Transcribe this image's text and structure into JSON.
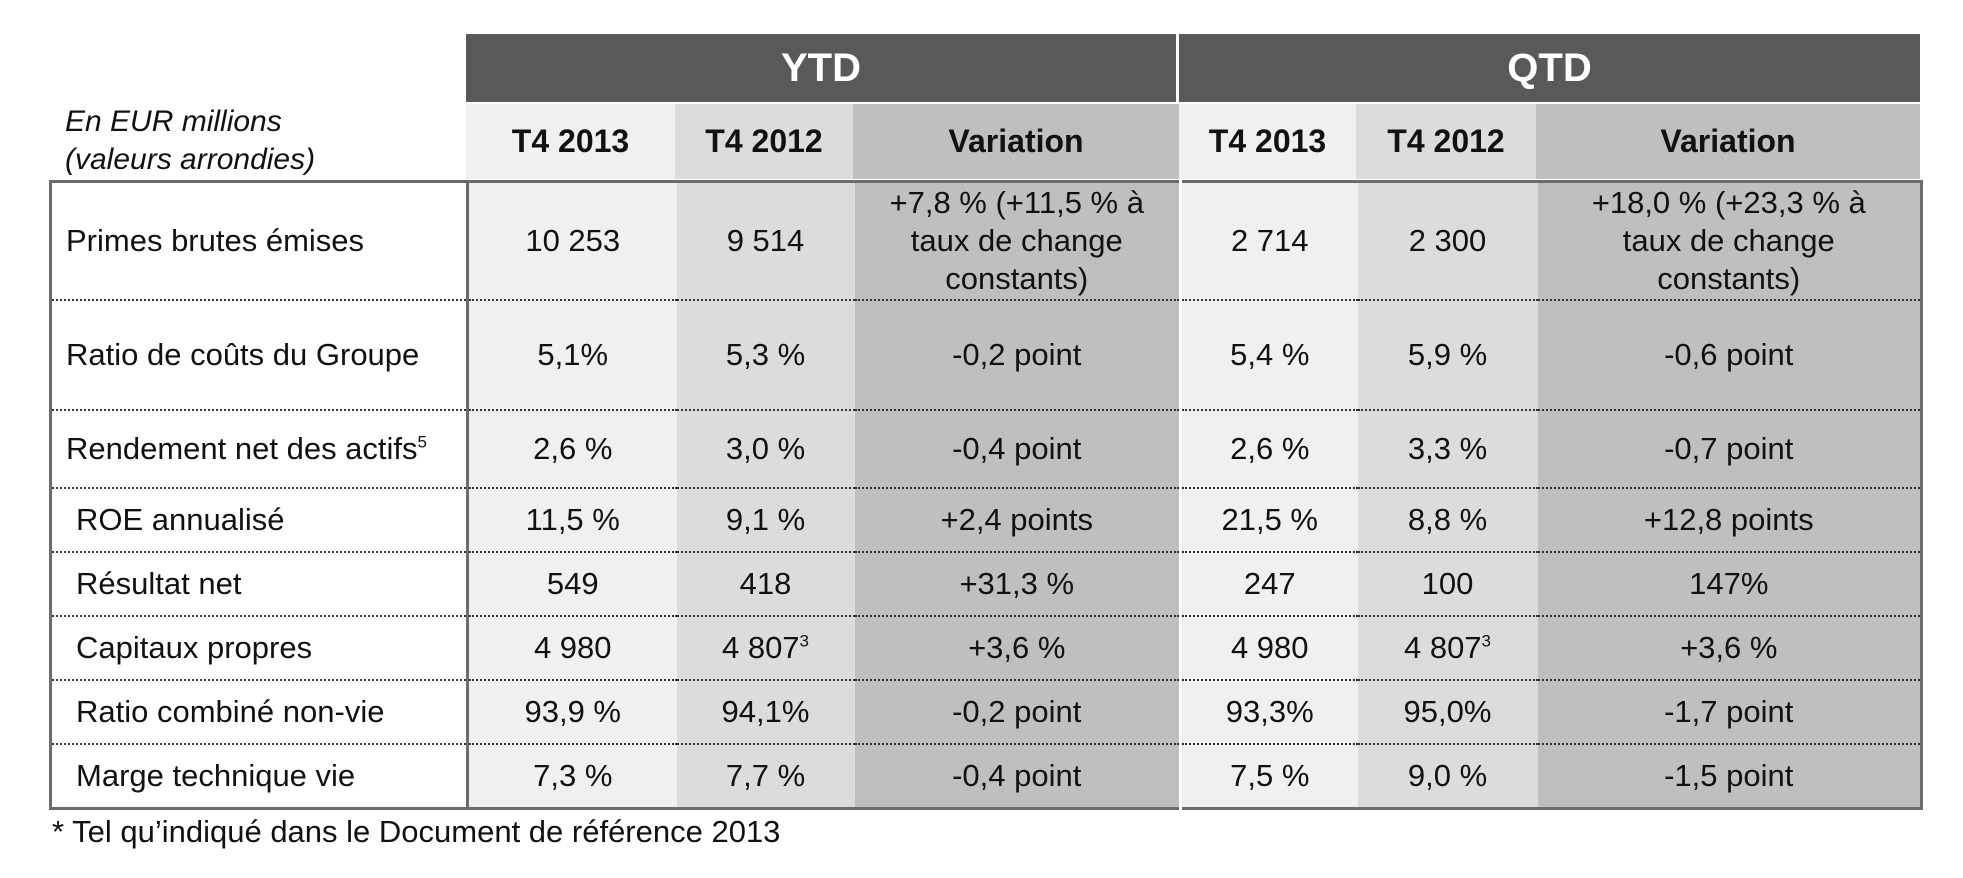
{
  "units": {
    "line1": "En EUR millions",
    "line2": "(valeurs arrondies)"
  },
  "groups": {
    "ytd": "YTD",
    "qtd": "QTD"
  },
  "subheaders": {
    "ytd": [
      "T4 2013",
      "T4 2012",
      "Variation"
    ],
    "qtd": [
      "T4 2013",
      "T4 2012",
      "Variation"
    ]
  },
  "rows": [
    {
      "label": "Primes brutes émises",
      "label_sup": "",
      "ytd": [
        "10 253",
        "9 514",
        "+7,8 % (+11,5 % à taux de change constants)"
      ],
      "ytd_sup": [
        "",
        "",
        ""
      ],
      "qtd": [
        "2 714",
        "2 300",
        "+18,0 % (+23,3 % à taux de change constants)"
      ],
      "qtd_sup": [
        "",
        "",
        ""
      ]
    },
    {
      "label": "Ratio de coûts du Groupe",
      "label_sup": "",
      "ytd": [
        "5,1%",
        "5,3 %",
        "-0,2 point"
      ],
      "ytd_sup": [
        "",
        "",
        ""
      ],
      "qtd": [
        "5,4 %",
        "5,9 %",
        "-0,6 point"
      ],
      "qtd_sup": [
        "",
        "",
        ""
      ]
    },
    {
      "label": "Rendement net des actifs",
      "label_sup": "5",
      "ytd": [
        "2,6 %",
        "3,0 %",
        "-0,4 point"
      ],
      "ytd_sup": [
        "",
        "",
        ""
      ],
      "qtd": [
        "2,6 %",
        "3,3 %",
        "-0,7 point"
      ],
      "qtd_sup": [
        "",
        "",
        ""
      ]
    },
    {
      "label": "ROE annualisé",
      "label_sup": "",
      "ytd": [
        "11,5 %",
        "9,1 %",
        "+2,4 points"
      ],
      "ytd_sup": [
        "",
        "",
        ""
      ],
      "qtd": [
        "21,5 %",
        "8,8 %",
        "+12,8 points"
      ],
      "qtd_sup": [
        "",
        "",
        ""
      ]
    },
    {
      "label": "Résultat net",
      "label_sup": "",
      "ytd": [
        "549",
        "418",
        "+31,3 %"
      ],
      "ytd_sup": [
        "",
        "",
        ""
      ],
      "qtd": [
        "247",
        "100",
        "147%"
      ],
      "qtd_sup": [
        "",
        "",
        ""
      ]
    },
    {
      "label": "Capitaux propres",
      "label_sup": "",
      "ytd": [
        "4 980",
        "4 807",
        "+3,6 %"
      ],
      "ytd_sup": [
        "",
        "3",
        ""
      ],
      "qtd": [
        "4 980",
        "4 807",
        "+3,6 %"
      ],
      "qtd_sup": [
        "",
        "3",
        ""
      ]
    },
    {
      "label": "Ratio combiné non-vie",
      "label_sup": "",
      "ytd": [
        "93,9 %",
        "94,1%",
        "-0,2 point"
      ],
      "ytd_sup": [
        "",
        "",
        ""
      ],
      "qtd": [
        "93,3%",
        "95,0%",
        "-1,7 point"
      ],
      "qtd_sup": [
        "",
        "",
        ""
      ]
    },
    {
      "label": "Marge technique vie",
      "label_sup": "",
      "ytd": [
        "7,3 %",
        "7,7 %",
        "-0,4 point"
      ],
      "ytd_sup": [
        "",
        "",
        ""
      ],
      "qtd": [
        "7,5 %",
        "9,0 %",
        "-1,5 point"
      ],
      "qtd_sup": [
        "",
        "",
        ""
      ]
    }
  ],
  "footnote": "* Tel qu’indiqué dans le Document de référence 2013",
  "colors": {
    "header_dark": "#595959",
    "col_light": "#f0f0f0",
    "col_mid": "#dcdcdc",
    "col_dark": "#bfbfbf",
    "border": "#6b6b6b"
  }
}
